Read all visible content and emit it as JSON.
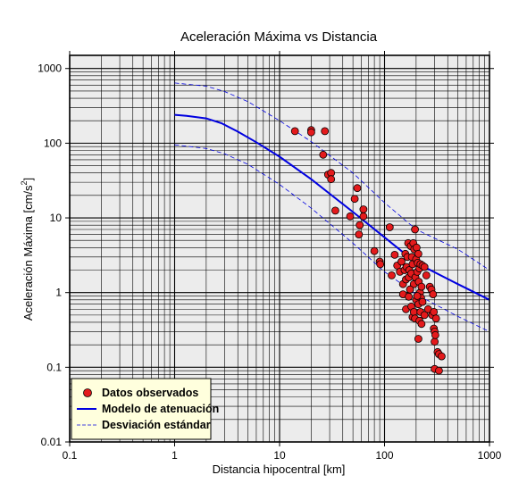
{
  "chart_data": {
    "type": "scatter",
    "title": "Aceleración Máxima vs Distancia",
    "xlabel": "Distancia hipocentral [km]",
    "ylabel_main": "Aceleración Máxima [cm/s",
    "ylabel_sup": "2",
    "ylabel_end": "]",
    "x_scale": "log",
    "y_scale": "log",
    "xlim": [
      0.1,
      1000
    ],
    "ylim": [
      0.01,
      1500
    ],
    "x_ticks": [
      {
        "value": 0.1,
        "label": "0.1"
      },
      {
        "value": 1,
        "label": "1"
      },
      {
        "value": 10,
        "label": "10"
      },
      {
        "value": 100,
        "label": "100"
      },
      {
        "value": 1000,
        "label": "1000"
      }
    ],
    "y_ticks": [
      {
        "value": 0.01,
        "label": "0.01"
      },
      {
        "value": 0.1,
        "label": "0.1"
      },
      {
        "value": 1,
        "label": "1"
      },
      {
        "value": 10,
        "label": "10"
      },
      {
        "value": 100,
        "label": "100"
      },
      {
        "value": 1000,
        "label": "1000"
      }
    ],
    "grid": true,
    "legend_position": "bottom-left",
    "colors": {
      "plot_background": "#ececec",
      "grid": "#000000",
      "points_fill": "#e41a1c",
      "points_stroke": "#000000",
      "model": "#0000e0",
      "deviation": "#0000e0",
      "legend_background": "#ffffdd"
    },
    "series": [
      {
        "name": "Datos observados",
        "kind": "points",
        "points": [
          [
            14,
            145
          ],
          [
            20,
            150
          ],
          [
            20,
            140
          ],
          [
            27,
            145
          ],
          [
            26,
            70
          ],
          [
            29,
            38
          ],
          [
            31,
            40
          ],
          [
            31,
            33
          ],
          [
            34,
            12.5
          ],
          [
            47,
            10.5
          ],
          [
            52,
            18
          ],
          [
            55,
            25
          ],
          [
            57,
            6
          ],
          [
            58,
            8
          ],
          [
            63,
            13
          ],
          [
            63,
            10.5
          ],
          [
            80,
            3.6
          ],
          [
            90,
            2.6
          ],
          [
            91,
            2.4
          ],
          [
            112,
            7.5
          ],
          [
            117,
            1.7
          ],
          [
            125,
            3.2
          ],
          [
            132,
            2.3
          ],
          [
            140,
            1.9
          ],
          [
            145,
            2.6
          ],
          [
            150,
            1.3
          ],
          [
            155,
            2.0
          ],
          [
            158,
            3.3
          ],
          [
            160,
            1.5
          ],
          [
            162,
            2.2
          ],
          [
            165,
            3.0
          ],
          [
            168,
            4.6
          ],
          [
            170,
            1.6
          ],
          [
            172,
            2.0
          ],
          [
            175,
            1.1
          ],
          [
            178,
            4.2
          ],
          [
            180,
            1.8
          ],
          [
            182,
            3.0
          ],
          [
            185,
            2.4
          ],
          [
            188,
            4.6
          ],
          [
            190,
            1.3
          ],
          [
            192,
            3.8
          ],
          [
            195,
            7.0
          ],
          [
            197,
            1.6
          ],
          [
            200,
            2.8
          ],
          [
            202,
            4.0
          ],
          [
            205,
            1.9
          ],
          [
            207,
            2.5
          ],
          [
            210,
            3.3
          ],
          [
            212,
            1.4
          ],
          [
            215,
            2.1
          ],
          [
            218,
            1.0
          ],
          [
            220,
            2.4
          ],
          [
            223,
            0.85
          ],
          [
            225,
            1.2
          ],
          [
            150,
            0.95
          ],
          [
            160,
            0.6
          ],
          [
            170,
            0.88
          ],
          [
            180,
            0.65
          ],
          [
            185,
            0.47
          ],
          [
            190,
            0.55
          ],
          [
            195,
            0.45
          ],
          [
            200,
            0.8
          ],
          [
            205,
            0.9
          ],
          [
            210,
            0.7
          ],
          [
            215,
            0.42
          ],
          [
            220,
            0.55
          ],
          [
            225,
            0.38
          ],
          [
            230,
            0.75
          ],
          [
            210,
            0.24
          ],
          [
            240,
            0.5
          ],
          [
            260,
            0.6
          ],
          [
            270,
            1.2
          ],
          [
            280,
            1.1
          ],
          [
            285,
            0.5
          ],
          [
            290,
            0.95
          ],
          [
            295,
            0.55
          ],
          [
            295,
            0.33
          ],
          [
            300,
            0.3
          ],
          [
            300,
            0.22
          ],
          [
            305,
            0.27
          ],
          [
            310,
            0.45
          ],
          [
            320,
            0.16
          ],
          [
            330,
            0.15
          ],
          [
            300,
            0.095
          ],
          [
            330,
            0.09
          ],
          [
            350,
            0.14
          ],
          [
            230,
            2.3
          ],
          [
            240,
            2.2
          ],
          [
            250,
            1.7
          ],
          [
            175,
            1.1
          ]
        ]
      },
      {
        "name": "Modelo de atenuación",
        "kind": "line",
        "points": [
          [
            1,
            240
          ],
          [
            1.3,
            232
          ],
          [
            2,
            215
          ],
          [
            2.8,
            185
          ],
          [
            4,
            143
          ],
          [
            6,
            103
          ],
          [
            10,
            66
          ],
          [
            20,
            33
          ],
          [
            50,
            12
          ],
          [
            100,
            5.5
          ],
          [
            200,
            2.5
          ],
          [
            500,
            1.3
          ],
          [
            1000,
            0.8
          ]
        ]
      },
      {
        "name": "Desviación estándar",
        "kind": "dashed",
        "group": "upper",
        "points": [
          [
            1,
            640
          ],
          [
            2,
            580
          ],
          [
            3,
            490
          ],
          [
            5,
            360
          ],
          [
            10,
            200
          ],
          [
            20,
            105
          ],
          [
            50,
            40
          ],
          [
            100,
            16
          ],
          [
            200,
            7
          ],
          [
            500,
            3.8
          ],
          [
            1000,
            2.0
          ]
        ]
      },
      {
        "name": "",
        "kind": "dashed",
        "group": "lower",
        "points": [
          [
            1,
            95
          ],
          [
            2,
            85
          ],
          [
            3,
            72
          ],
          [
            5,
            52
          ],
          [
            10,
            28
          ],
          [
            20,
            13.5
          ],
          [
            50,
            4.6
          ],
          [
            100,
            1.9
          ],
          [
            200,
            0.95
          ],
          [
            500,
            0.48
          ],
          [
            1000,
            0.3
          ]
        ]
      }
    ],
    "legend": [
      {
        "label": "Datos observados",
        "symbol": "circle"
      },
      {
        "label": "Modelo de atenuación",
        "symbol": "solid-line"
      },
      {
        "label": "Desviación estándar",
        "symbol": "dashed-line"
      }
    ]
  }
}
